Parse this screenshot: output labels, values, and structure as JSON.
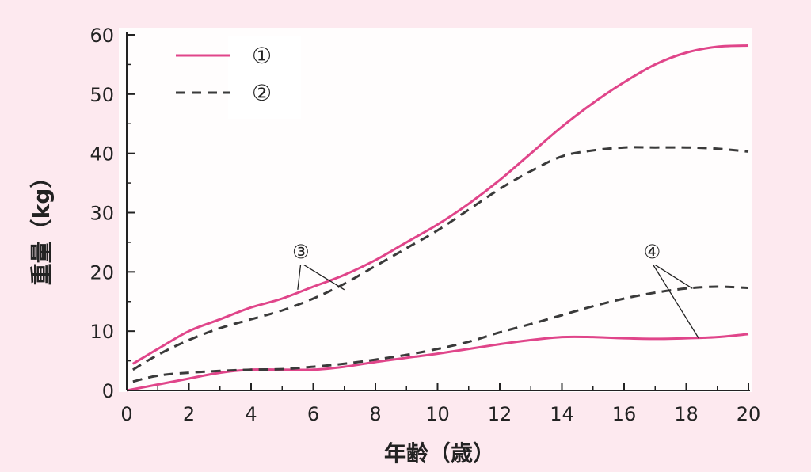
{
  "colors": {
    "page_background": "#fde9ef",
    "plot_background": "#fffdfd",
    "series_solid": "#e0458a",
    "series_dashed": "#3a3a3a",
    "axis": "#222222"
  },
  "chart_data": {
    "type": "line",
    "title": "",
    "xlabel": "年齢（歳）",
    "ylabel": "重量（kg）",
    "xlim": [
      0,
      20
    ],
    "ylim": [
      0,
      60
    ],
    "x_ticks": [
      0,
      2,
      4,
      6,
      8,
      10,
      12,
      14,
      16,
      18,
      20
    ],
    "y_ticks": [
      0,
      10,
      20,
      30,
      40,
      50,
      60
    ],
    "grid": false,
    "legend": {
      "position": "top-left",
      "entries": [
        {
          "label": "①",
          "style": "solid"
        },
        {
          "label": "②",
          "style": "dashed"
        }
      ]
    },
    "series": [
      {
        "style": "solid",
        "group": "upper",
        "points": [
          [
            0.2,
            4.5
          ],
          [
            1,
            7
          ],
          [
            2,
            10
          ],
          [
            3,
            12
          ],
          [
            4,
            14
          ],
          [
            5,
            15.5
          ],
          [
            6,
            17.5
          ],
          [
            7,
            19.5
          ],
          [
            8,
            22
          ],
          [
            9,
            25
          ],
          [
            10,
            28
          ],
          [
            11,
            31.5
          ],
          [
            12,
            35.5
          ],
          [
            13,
            40
          ],
          [
            14,
            44.5
          ],
          [
            15,
            48.5
          ],
          [
            16,
            52
          ],
          [
            17,
            55
          ],
          [
            18,
            57
          ],
          [
            19,
            58
          ],
          [
            20,
            58.2
          ]
        ]
      },
      {
        "style": "dashed",
        "group": "upper",
        "points": [
          [
            0.2,
            3.5
          ],
          [
            1,
            6
          ],
          [
            2,
            8.5
          ],
          [
            3,
            10.5
          ],
          [
            4,
            12
          ],
          [
            5,
            13.5
          ],
          [
            6,
            15.5
          ],
          [
            7,
            18
          ],
          [
            8,
            21
          ],
          [
            9,
            24
          ],
          [
            10,
            27
          ],
          [
            11,
            30.5
          ],
          [
            12,
            34
          ],
          [
            13,
            37
          ],
          [
            14,
            39.5
          ],
          [
            15,
            40.5
          ],
          [
            16,
            41
          ],
          [
            17,
            41
          ],
          [
            18,
            41
          ],
          [
            19,
            40.8
          ],
          [
            20,
            40.3
          ]
        ]
      },
      {
        "style": "solid",
        "group": "lower",
        "points": [
          [
            0,
            0
          ],
          [
            1,
            1
          ],
          [
            2,
            2
          ],
          [
            3,
            3
          ],
          [
            4,
            3.5
          ],
          [
            5,
            3.5
          ],
          [
            6,
            3.5
          ],
          [
            7,
            4
          ],
          [
            8,
            4.8
          ],
          [
            9,
            5.5
          ],
          [
            10,
            6.2
          ],
          [
            11,
            7
          ],
          [
            12,
            7.8
          ],
          [
            13,
            8.5
          ],
          [
            14,
            9
          ],
          [
            15,
            9
          ],
          [
            16,
            8.8
          ],
          [
            17,
            8.7
          ],
          [
            18,
            8.8
          ],
          [
            19,
            9
          ],
          [
            20,
            9.5
          ]
        ]
      },
      {
        "style": "dashed",
        "group": "lower",
        "points": [
          [
            0.2,
            1.5
          ],
          [
            1,
            2.5
          ],
          [
            2,
            3
          ],
          [
            3,
            3.3
          ],
          [
            4,
            3.5
          ],
          [
            5,
            3.6
          ],
          [
            6,
            4
          ],
          [
            7,
            4.5
          ],
          [
            8,
            5.2
          ],
          [
            9,
            6
          ],
          [
            10,
            7
          ],
          [
            11,
            8.2
          ],
          [
            12,
            9.8
          ],
          [
            13,
            11.2
          ],
          [
            14,
            12.7
          ],
          [
            15,
            14.2
          ],
          [
            16,
            15.5
          ],
          [
            17,
            16.5
          ],
          [
            18,
            17.2
          ],
          [
            19,
            17.5
          ],
          [
            20,
            17.3
          ]
        ]
      }
    ],
    "annotations": [
      {
        "label": "③",
        "at": [
          5.6,
          21.5
        ],
        "targets": [
          [
            5.5,
            17.0
          ],
          [
            7.0,
            17.0
          ]
        ]
      },
      {
        "label": "④",
        "at": [
          16.9,
          21.5
        ],
        "targets": [
          [
            18.2,
            17.2
          ],
          [
            18.4,
            8.8
          ]
        ]
      }
    ]
  }
}
